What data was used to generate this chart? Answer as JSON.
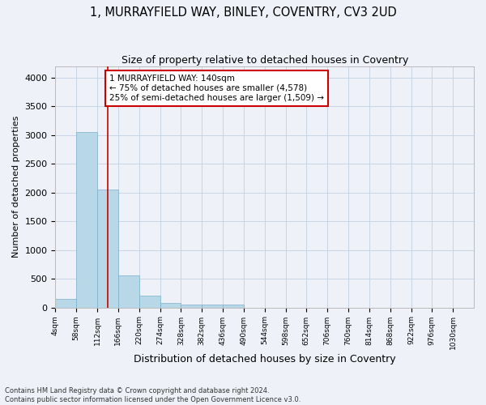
{
  "title": "1, MURRAYFIELD WAY, BINLEY, COVENTRY, CV3 2UD",
  "subtitle": "Size of property relative to detached houses in Coventry",
  "xlabel": "Distribution of detached houses by size in Coventry",
  "ylabel": "Number of detached properties",
  "footnote1": "Contains HM Land Registry data © Crown copyright and database right 2024.",
  "footnote2": "Contains public sector information licensed under the Open Government Licence v3.0.",
  "annotation_line1": "1 MURRAYFIELD WAY: 140sqm",
  "annotation_line2": "← 75% of detached houses are smaller (4,578)",
  "annotation_line3": "25% of semi-detached houses are larger (1,509) →",
  "property_size": 140,
  "bin_width": 54,
  "bin_starts": [
    4,
    58,
    112,
    166,
    220,
    274,
    328,
    382,
    436,
    490,
    544,
    598,
    652,
    706,
    760,
    814,
    868,
    922,
    976,
    1030
  ],
  "bar_heights": [
    150,
    3050,
    2050,
    560,
    210,
    80,
    50,
    50,
    50,
    0,
    0,
    0,
    0,
    0,
    0,
    0,
    0,
    0,
    0,
    0
  ],
  "bar_color": "#b8d8e8",
  "bar_edge_color": "#7ab0cc",
  "vline_color": "#cc0000",
  "vline_x": 140,
  "annotation_box_color": "#cc0000",
  "grid_color": "#c8d4e4",
  "background_color": "#eef2f8",
  "ylim": [
    0,
    4200
  ],
  "yticks": [
    0,
    500,
    1000,
    1500,
    2000,
    2500,
    3000,
    3500,
    4000
  ],
  "xlim_start": 4,
  "n_bins": 20
}
